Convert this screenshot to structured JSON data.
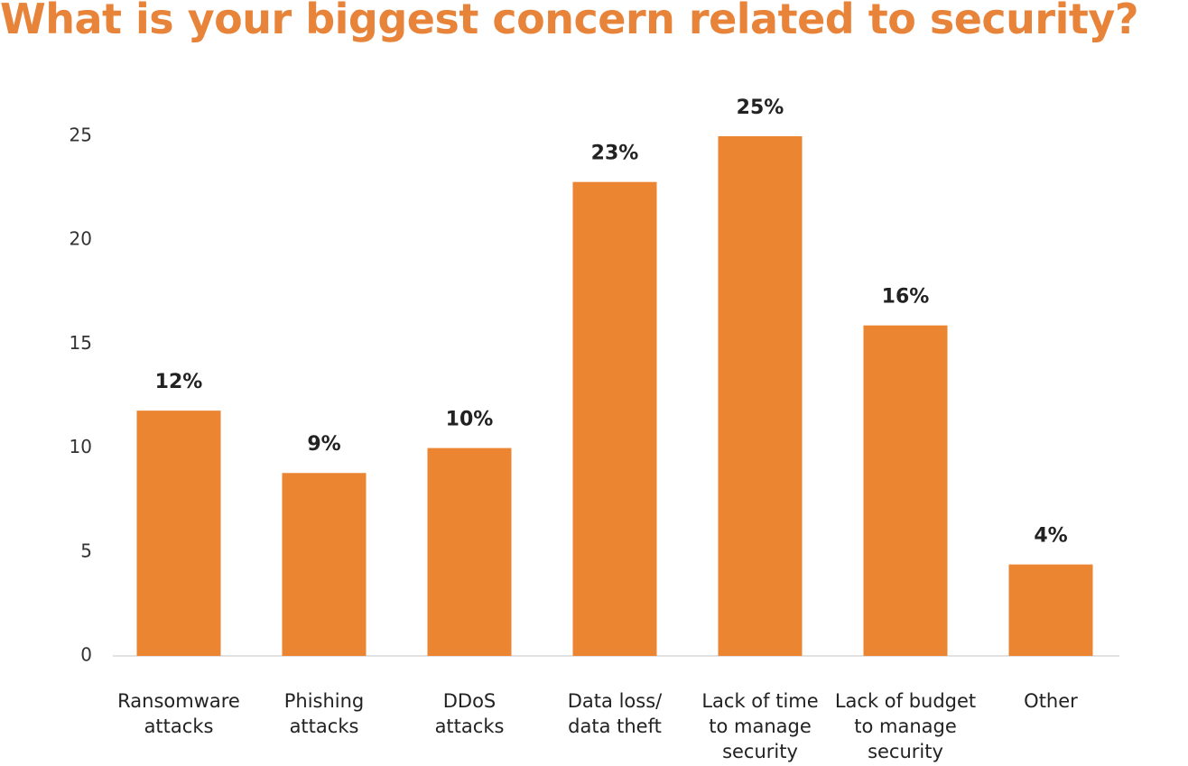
{
  "chart_data": {
    "type": "bar",
    "title": "What is your biggest concern related to security?",
    "categories": [
      "Ransomware\nattacks",
      "Phishing\nattacks",
      "DDoS\nattacks",
      "Data loss/\ndata theft",
      "Lack of time\nto manage\nsecurity",
      "Lack of budget\nto manage\nsecurity",
      "Other"
    ],
    "values": [
      11.8,
      8.8,
      10,
      22.8,
      25,
      15.9,
      4.4
    ],
    "value_labels": [
      "12%",
      "9%",
      "10%",
      "23%",
      "25%",
      "16%",
      "4%"
    ],
    "color": "#EB8532",
    "ylim": [
      0,
      25
    ],
    "yticks": [
      0,
      5,
      10,
      15,
      20,
      25
    ],
    "grid": false
  }
}
